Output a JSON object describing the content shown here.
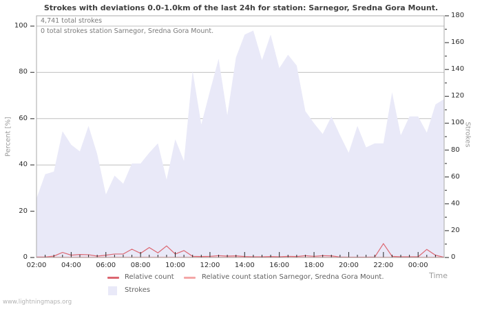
{
  "page": {
    "watermark": "www.lightningmaps.org"
  },
  "chart_data": {
    "type": "area",
    "title": "Strokes with deviations 0.0-1.0km of the last 24h for station: Sarnegor, Sredna Gora Mount.",
    "annotations": [
      "4,741 total strokes",
      "0 total strokes station Sarnegor, Sredna Gora Mount."
    ],
    "x_axis": {
      "label": "Time",
      "tick_labels": [
        "02:00",
        "04:00",
        "06:00",
        "08:00",
        "10:00",
        "12:00",
        "14:00",
        "16:00",
        "18:00",
        "20:00",
        "22:00",
        "00:00"
      ],
      "minor_tick_interval_minutes": 30
    },
    "y_axis_left": {
      "label": "Percent  [%]",
      "ticks": [
        0,
        20,
        40,
        60,
        80,
        100
      ],
      "range": [
        0,
        100
      ]
    },
    "y_axis_right": {
      "label": "Strokes",
      "ticks": [
        0,
        20,
        40,
        60,
        80,
        100,
        120,
        140,
        160,
        180
      ],
      "minor_step": 10,
      "range": [
        0,
        180
      ]
    },
    "grid": "horizontal",
    "legend_position": "bottom",
    "categories": [
      "02:00",
      "02:30",
      "03:00",
      "03:30",
      "04:00",
      "04:30",
      "05:00",
      "05:30",
      "06:00",
      "06:30",
      "07:00",
      "07:30",
      "08:00",
      "08:30",
      "09:00",
      "09:30",
      "10:00",
      "10:30",
      "11:00",
      "11:30",
      "12:00",
      "12:30",
      "13:00",
      "13:30",
      "14:00",
      "14:30",
      "15:00",
      "15:30",
      "16:00",
      "16:30",
      "17:00",
      "17:30",
      "18:00",
      "18:30",
      "19:00",
      "19:30",
      "20:00",
      "20:30",
      "21:00",
      "21:30",
      "22:00",
      "22:30",
      "23:00",
      "23:30",
      "00:00",
      "00:30",
      "01:00",
      "01:30"
    ],
    "series": [
      {
        "name": "Relative count",
        "type": "line",
        "axis": "left",
        "unit": "%",
        "color": "#dc6670",
        "values": [
          0.2,
          0.2,
          0.6,
          2.2,
          1.0,
          1.3,
          1.2,
          0.6,
          1.0,
          1.5,
          1.5,
          3.6,
          1.8,
          4.3,
          2.0,
          5.0,
          1.5,
          3.0,
          0.5,
          0.4,
          0.5,
          0.8,
          0.6,
          0.7,
          0.4,
          0.3,
          0.3,
          0.4,
          0.3,
          0.5,
          0.4,
          0.8,
          0.5,
          0.8,
          0.7,
          0.2,
          0.1,
          0.1,
          0.1,
          0.2,
          6.0,
          0.5,
          0.3,
          0.3,
          0.3,
          3.5,
          1.0,
          0.1
        ]
      },
      {
        "name": "Relative count station Sarnegor, Sredna Gora Mount.",
        "type": "line",
        "axis": "left",
        "unit": "%",
        "color": "#f4a6a6",
        "values": [
          0,
          0,
          0,
          0,
          0,
          0,
          0,
          0,
          0,
          0,
          0,
          0,
          0,
          0,
          0,
          0,
          0,
          0,
          0,
          0,
          0,
          0,
          0,
          0,
          0,
          0,
          0,
          0,
          0,
          0,
          0,
          0,
          0,
          0,
          0,
          0,
          0,
          0,
          0,
          0,
          0,
          0,
          0,
          0,
          0,
          0,
          0,
          0
        ]
      },
      {
        "name": "Strokes",
        "type": "area",
        "axis": "right",
        "unit": "strokes",
        "color": "#e9e9f8",
        "values": [
          44,
          62,
          64,
          94,
          84,
          79,
          98,
          77,
          47,
          61,
          55,
          70,
          70,
          78,
          85,
          58,
          88,
          72,
          139,
          99,
          124,
          148,
          106,
          149,
          166,
          169,
          147,
          166,
          141,
          151,
          143,
          109,
          100,
          92,
          105,
          91,
          78,
          98,
          82,
          85,
          85,
          123,
          91,
          105,
          105,
          93,
          114,
          118
        ]
      }
    ]
  },
  "colors": {
    "grid": "#bfbfbf",
    "border": "#a9a9a9",
    "tick": "#222222",
    "axis_dash": "#555555"
  }
}
